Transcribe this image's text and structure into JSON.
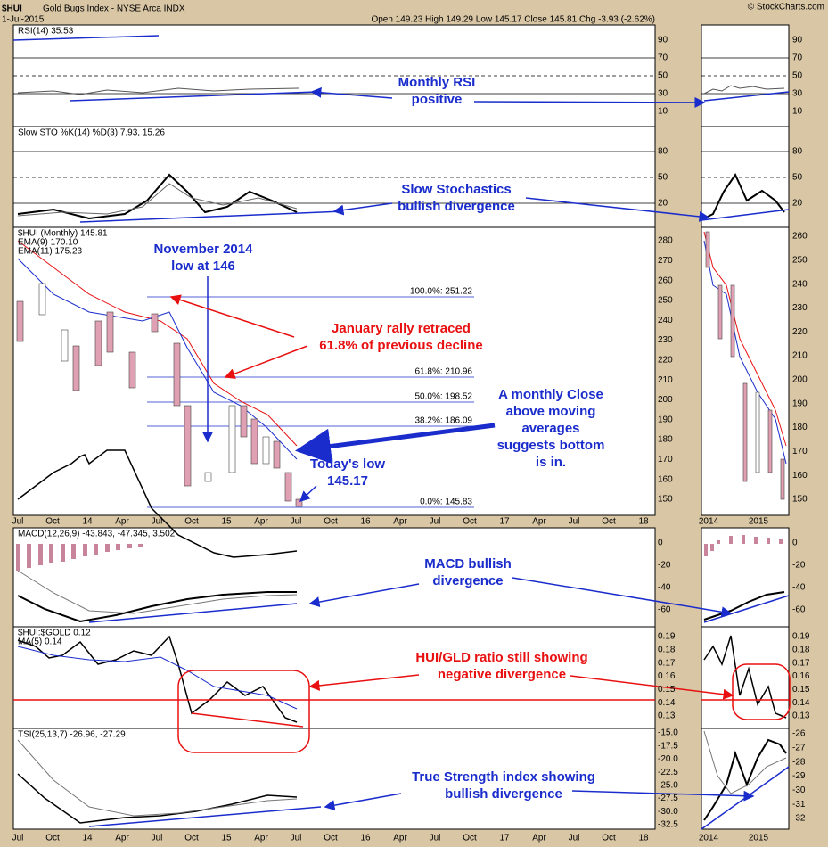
{
  "header": {
    "symbol": "$HUI",
    "name": "Gold Bugs Index - NYSE Arca INDX",
    "date": "1-Jul-2015",
    "quote": "Open 149.23 High 149.29 Low 145.17 Close 145.81 Chg -3.93 (-2.62%)",
    "credit": "© StockCharts.com"
  },
  "panels": [
    {
      "labels": [
        "RSI(14) 35.53"
      ],
      "ticks": [
        "90",
        "70",
        "50",
        "30",
        "10"
      ],
      "mini_ticks": [
        "90",
        "70",
        "50",
        "30",
        "10"
      ]
    },
    {
      "labels": [
        "Slow STO %K(14) %D(3) 7.93, 15.26"
      ],
      "ticks": [
        "80",
        "50",
        "20"
      ],
      "mini_ticks": [
        "80",
        "50",
        "20"
      ]
    },
    {
      "labels": [
        "$HUI (Monthly) 145.81",
        "EMA(9) 170.10",
        "EMA(11) 175.23"
      ],
      "ticks": [
        "280",
        "270",
        "260",
        "250",
        "240",
        "230",
        "220",
        "210",
        "200",
        "190",
        "180",
        "170",
        "160",
        "150"
      ],
      "mini_ticks": [
        "260",
        "250",
        "240",
        "230",
        "220",
        "210",
        "200",
        "190",
        "180",
        "170",
        "160",
        "150"
      ]
    },
    {
      "labels": [
        "MACD(12,26,9) -43.843, -47.345, 3.502"
      ],
      "ticks": [
        "0",
        "-20",
        "-40",
        "-60"
      ],
      "mini_ticks": [
        "0",
        "-20",
        "-40",
        "-60"
      ]
    },
    {
      "labels": [
        "$HUI:$GOLD 0.12",
        "MA(5) 0.14"
      ],
      "ticks": [
        "0.19",
        "0.18",
        "0.17",
        "0.16",
        "0.15",
        "0.14",
        "0.13"
      ],
      "mini_ticks": [
        "0.19",
        "0.18",
        "0.17",
        "0.16",
        "0.15",
        "0.14",
        "0.13"
      ]
    },
    {
      "labels": [
        "TSI(25,13,7) -26.96, -27.29"
      ],
      "ticks": [
        "-15.0",
        "-17.5",
        "-20.0",
        "-22.5",
        "-25.0",
        "-27.5",
        "-30.0",
        "-32.5"
      ],
      "mini_ticks": [
        "-26",
        "-27",
        "-28",
        "-29",
        "-30",
        "-31",
        "-32"
      ]
    }
  ],
  "x_axis": [
    "Jul",
    "Oct",
    "14",
    "Apr",
    "Jul",
    "Oct",
    "15",
    "Apr",
    "Jul",
    "Oct",
    "16",
    "Apr",
    "Jul",
    "Oct",
    "17",
    "Apr",
    "Jul",
    "Oct",
    "18"
  ],
  "mini_x_axis": [
    "2014",
    "2015"
  ],
  "fib_levels": [
    "100.0%: 251.22",
    "61.8%: 210.96",
    "50.0%: 198.52",
    "38.2%: 186.09",
    "0.0%: 145.83"
  ],
  "annotations": [
    {
      "color": "blue",
      "lines": [
        "Monthly RSI",
        "positive"
      ]
    },
    {
      "color": "blue",
      "lines": [
        "Slow Stochastics",
        "bullish divergence"
      ]
    },
    {
      "color": "blue",
      "lines": [
        "November 2014",
        "low at 146"
      ]
    },
    {
      "color": "red",
      "lines": [
        "January rally retraced",
        "61.8% of previous decline"
      ]
    },
    {
      "color": "blue",
      "lines": [
        "A monthly Close",
        "above moving",
        "averages",
        "suggests bottom",
        "is in."
      ]
    },
    {
      "color": "blue",
      "lines": [
        "Today's low",
        "145.17"
      ]
    },
    {
      "color": "blue",
      "lines": [
        "MACD bullish",
        "divergence"
      ]
    },
    {
      "color": "red",
      "lines": [
        "HUI/GLD ratio still showing",
        "negative divergence"
      ]
    },
    {
      "color": "blue",
      "lines": [
        "True Strength index showing",
        "bullish divergence"
      ]
    }
  ]
}
